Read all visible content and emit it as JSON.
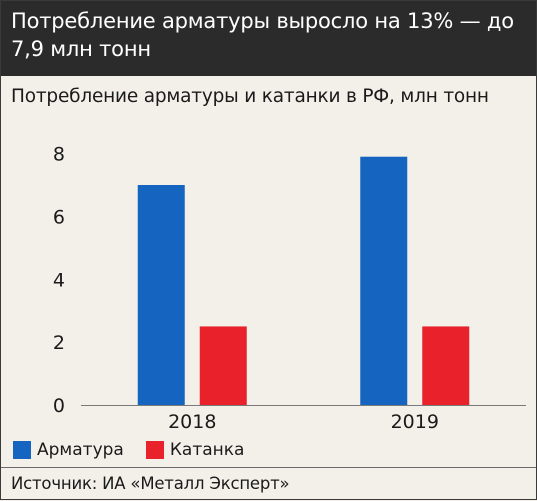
{
  "header": {
    "title": "Потребление арматуры выросло на 13% — до 7,9 млн тонн"
  },
  "subtitle": "Потребление арматуры и катанки в РФ, млн тонн",
  "source": "Источник: ИА «Металл Эксперт»",
  "colors": {
    "series_1": "#1565c0",
    "series_2": "#e8212b",
    "header_bg": "#2b2b2b",
    "background": "#f2f0e9"
  },
  "chart_data": {
    "type": "bar",
    "title": "Потребление арматуры и катанки в РФ, млн тонн",
    "categories": [
      "2018",
      "2019"
    ],
    "series": [
      {
        "name": "Арматура",
        "values": [
          7.0,
          7.9
        ]
      },
      {
        "name": "Катанка",
        "values": [
          2.5,
          2.5
        ]
      }
    ],
    "yticks": [
      "0",
      "2",
      "4",
      "6",
      "8"
    ],
    "ylim": [
      0,
      8.4
    ],
    "grid": false,
    "legend": "bottom-left"
  }
}
